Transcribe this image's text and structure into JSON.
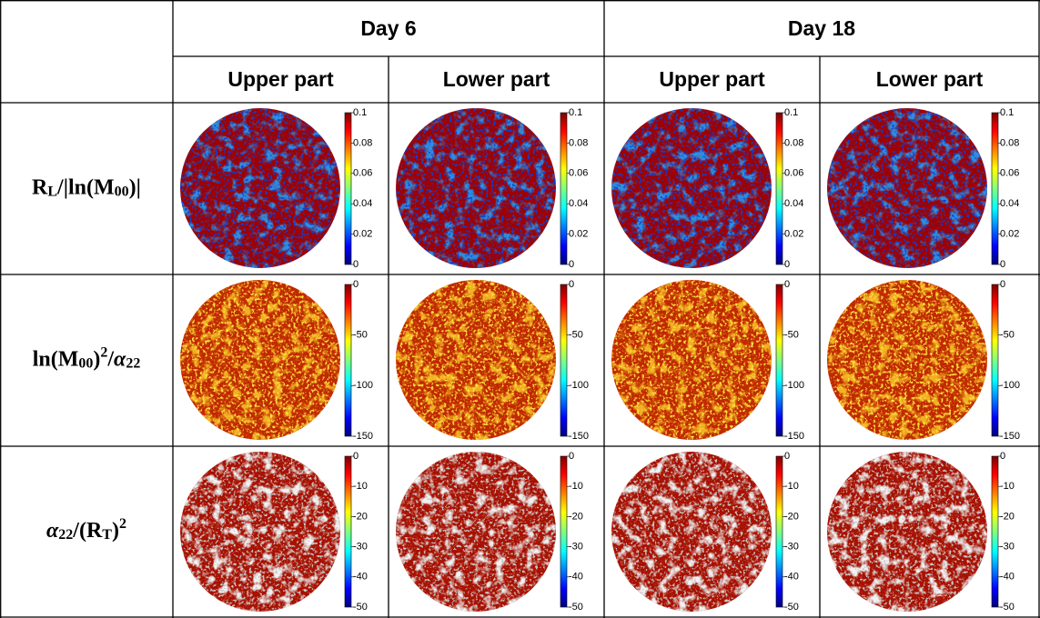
{
  "header": {
    "groups": [
      "Day 6",
      "Day 18"
    ],
    "columns": [
      "Upper part",
      "Lower part",
      "Upper part",
      "Lower part"
    ]
  },
  "rows": [
    {
      "label": [
        {
          "text": "R"
        },
        {
          "sub": "L"
        },
        {
          "text": "/|ln(M"
        },
        {
          "sub": "00"
        },
        {
          "text": ")|"
        }
      ],
      "clim": [
        0,
        0.1
      ],
      "ticks": [
        0.1,
        0.08,
        0.06,
        0.04,
        0.02,
        0
      ]
    },
    {
      "label": [
        {
          "text": "ln(M"
        },
        {
          "sub": "00"
        },
        {
          "text": ")"
        },
        {
          "sup": "2"
        },
        {
          "text": "/"
        },
        {
          "italic": "α"
        },
        {
          "sub": "22"
        }
      ],
      "clim": [
        -150,
        0
      ],
      "ticks": [
        0,
        -50,
        -100,
        -150
      ]
    },
    {
      "label": [
        {
          "italic": "α"
        },
        {
          "sub": "22"
        },
        {
          "text": "/(R"
        },
        {
          "sub": "T"
        },
        {
          "text": ")"
        },
        {
          "sup": "2"
        }
      ],
      "clim": [
        -50,
        0
      ],
      "ticks": [
        0,
        -10,
        -20,
        -30,
        -40,
        -50
      ]
    }
  ]
}
